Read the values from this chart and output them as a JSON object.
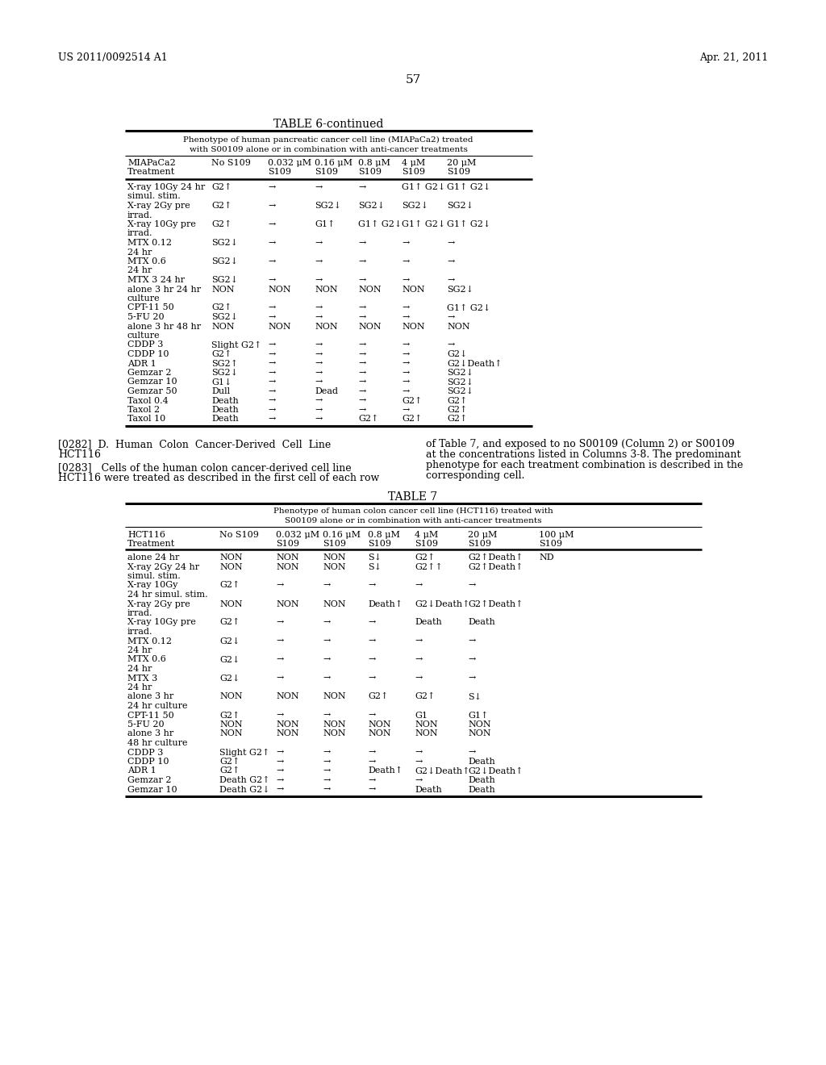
{
  "page_header_left": "US 2011/0092514 A1",
  "page_header_right": "Apr. 21, 2011",
  "page_number": "57",
  "table6_title": "TABLE 6-continued",
  "table6_subtitle1": "Phenotype of human pancreatic cancer cell line (MIAPaCa2) treated",
  "table6_subtitle2": "with S00109 alone or in combination with anti-cancer treatments",
  "table6_col_headers_line1": [
    "MIAPaCa2",
    "No S109",
    "0.032 μM",
    "0.16 μM",
    "0.8 μM",
    "4 μM",
    "20 μM"
  ],
  "table6_col_headers_line2": [
    "Treatment",
    "",
    "S109",
    "S109",
    "S109",
    "S109",
    "S109"
  ],
  "table6_rows": [
    [
      "X-ray 10Gy 24 hr",
      "G2↑",
      "→",
      "→",
      "→",
      "G1↑ G2↓",
      "G1↑ G2↓"
    ],
    [
      "simul. stim.",
      "",
      "",
      "",
      "",
      "",
      ""
    ],
    [
      "X-ray 2Gy pre",
      "G2↑",
      "→",
      "SG2↓",
      "SG2↓",
      "SG2↓",
      "SG2↓"
    ],
    [
      "irrad.",
      "",
      "",
      "",
      "",
      "",
      ""
    ],
    [
      "X-ray 10Gy pre",
      "G2↑",
      "→",
      "G1↑",
      "G1↑ G2↓",
      "G1↑ G2↓",
      "G1↑ G2↓"
    ],
    [
      "irrad.",
      "",
      "",
      "",
      "",
      "",
      ""
    ],
    [
      "MTX 0.12",
      "SG2↓",
      "→",
      "→",
      "→",
      "→",
      "→"
    ],
    [
      "24 hr",
      "",
      "",
      "",
      "",
      "",
      ""
    ],
    [
      "MTX 0.6",
      "SG2↓",
      "→",
      "→",
      "→",
      "→",
      "→"
    ],
    [
      "24 hr",
      "",
      "",
      "",
      "",
      "",
      ""
    ],
    [
      "MTX 3 24 hr",
      "SG2↓",
      "→",
      "→",
      "→",
      "→",
      "→"
    ],
    [
      "alone 3 hr 24 hr",
      "NON",
      "NON",
      "NON",
      "NON",
      "NON",
      "SG2↓"
    ],
    [
      "culture",
      "",
      "",
      "",
      "",
      "",
      ""
    ],
    [
      "CPT-11 50",
      "G2↑",
      "→",
      "→",
      "→",
      "→",
      "G1↑ G2↓"
    ],
    [
      "5-FU 20",
      "SG2↓",
      "→",
      "→",
      "→",
      "→",
      "→"
    ],
    [
      "alone 3 hr 48 hr",
      "NON",
      "NON",
      "NON",
      "NON",
      "NON",
      "NON"
    ],
    [
      "culture",
      "",
      "",
      "",
      "",
      "",
      ""
    ],
    [
      "CDDP 3",
      "Slight G2↑",
      "→",
      "→",
      "→",
      "→",
      "→"
    ],
    [
      "CDDP 10",
      "G2↑",
      "→",
      "→",
      "→",
      "→",
      "G2↓"
    ],
    [
      "ADR 1",
      "SG2↑",
      "→",
      "→",
      "→",
      "→",
      "G2↓Death↑"
    ],
    [
      "Gemzar 2",
      "SG2↓",
      "→",
      "→",
      "→",
      "→",
      "SG2↓"
    ],
    [
      "Gemzar 10",
      "G1↓",
      "→",
      "→",
      "→",
      "→",
      "SG2↓"
    ],
    [
      "Gemzar 50",
      "Dull",
      "→",
      "Dead",
      "→",
      "→",
      "SG2↓"
    ],
    [
      "Taxol 0.4",
      "Death",
      "→",
      "→",
      "→",
      "G2↑",
      "G2↑"
    ],
    [
      "Taxol 2",
      "Death",
      "→",
      "→",
      "→",
      "→",
      "G2↑"
    ],
    [
      "Taxol 10",
      "Death",
      "→",
      "→",
      "G2↑",
      "G2↑",
      "G2↑"
    ]
  ],
  "para282": "[0282]  D.  Human  Colon  Cancer-Derived  Cell  Line",
  "para282b": "HCT116",
  "para283": "[0283]   Cells of the human colon cancer-derived cell line",
  "para283b": "HCT116 were treated as described in the first cell of each row",
  "right1": "of Table 7, and exposed to no S00109 (Column 2) or S00109",
  "right2": "at the concentrations listed in Columns 3-8. The predominant",
  "right3": "phenotype for each treatment combination is described in the",
  "right4": "corresponding cell.",
  "table7_title": "TABLE 7",
  "table7_subtitle1": "Phenotype of human colon cancer cell line (HCT116) treated with",
  "table7_subtitle2": "S00109 alone or in combination with anti-cancer treatments",
  "table7_col_headers_line1": [
    "HCT116",
    "No S109",
    "0.032 μM",
    "0.16 μM",
    "0.8 μM",
    "4 μM",
    "20 μM",
    "100 μM"
  ],
  "table7_col_headers_line2": [
    "Treatment",
    "",
    "S109",
    "S109",
    "S109",
    "S109",
    "S109",
    "S109"
  ],
  "table7_rows": [
    [
      "alone 24 hr",
      "NON",
      "NON",
      "NON",
      "S↓",
      "G2↑",
      "G2↑Death↑",
      "ND"
    ],
    [
      "X-ray 2Gy 24 hr",
      "NON",
      "NON",
      "NON",
      "S↓",
      "G2↑↑",
      "G2↑Death↑",
      ""
    ],
    [
      "simul. stim.",
      "",
      "",
      "",
      "",
      "",
      "",
      ""
    ],
    [
      "X-ray 10Gy",
      "G2↑",
      "→",
      "→",
      "→",
      "→",
      "→",
      ""
    ],
    [
      "24 hr simul. stim.",
      "",
      "",
      "",
      "",
      "",
      "",
      ""
    ],
    [
      "X-ray 2Gy pre",
      "NON",
      "NON",
      "NON",
      "Death↑",
      "G2↓Death↑",
      "G2↑Death↑",
      ""
    ],
    [
      "irrad.",
      "",
      "",
      "",
      "",
      "",
      "",
      ""
    ],
    [
      "X-ray 10Gy pre",
      "G2↑",
      "→",
      "→",
      "→",
      "Death",
      "Death",
      ""
    ],
    [
      "irrad.",
      "",
      "",
      "",
      "",
      "",
      "",
      ""
    ],
    [
      "MTX 0.12",
      "G2↓",
      "→",
      "→",
      "→",
      "→",
      "→",
      ""
    ],
    [
      "24 hr",
      "",
      "",
      "",
      "",
      "",
      "",
      ""
    ],
    [
      "MTX 0.6",
      "G2↓",
      "→",
      "→",
      "→",
      "→",
      "→",
      ""
    ],
    [
      "24 hr",
      "",
      "",
      "",
      "",
      "",
      "",
      ""
    ],
    [
      "MTX 3",
      "G2↓",
      "→",
      "→",
      "→",
      "→",
      "→",
      ""
    ],
    [
      "24 hr",
      "",
      "",
      "",
      "",
      "",
      "",
      ""
    ],
    [
      "alone 3 hr",
      "NON",
      "NON",
      "NON",
      "G2↑",
      "G2↑",
      "S↓",
      ""
    ],
    [
      "24 hr culture",
      "",
      "",
      "",
      "",
      "",
      "",
      ""
    ],
    [
      "CPT-11 50",
      "G2↑",
      "→",
      "→",
      "→",
      "G1",
      "G1↑",
      ""
    ],
    [
      "5-FU 20",
      "NON",
      "NON",
      "NON",
      "NON",
      "NON",
      "NON",
      ""
    ],
    [
      "alone 3 hr",
      "NON",
      "NON",
      "NON",
      "NON",
      "NON",
      "NON",
      ""
    ],
    [
      "48 hr culture",
      "",
      "",
      "",
      "",
      "",
      "",
      ""
    ],
    [
      "CDDP 3",
      "Slight G2↑",
      "→",
      "→",
      "→",
      "→",
      "→",
      ""
    ],
    [
      "CDDP 10",
      "G2↑",
      "→",
      "→",
      "→",
      "→",
      "Death",
      ""
    ],
    [
      "ADR 1",
      "G2↑",
      "→",
      "→",
      "Death↑",
      "G2↓Death↑",
      "G2↓Death↑",
      ""
    ],
    [
      "Gemzar 2",
      "Death G2↑",
      "→",
      "→",
      "→",
      "→",
      "Death",
      ""
    ],
    [
      "Gemzar 10",
      "Death G2↓",
      "→",
      "→",
      "→",
      "Death",
      "Death",
      ""
    ]
  ],
  "bg": "#ffffff",
  "fg": "#000000",
  "fs": 8.0,
  "fs_header": 9.0,
  "fs_title": 10.0,
  "fs_page": 11.0
}
